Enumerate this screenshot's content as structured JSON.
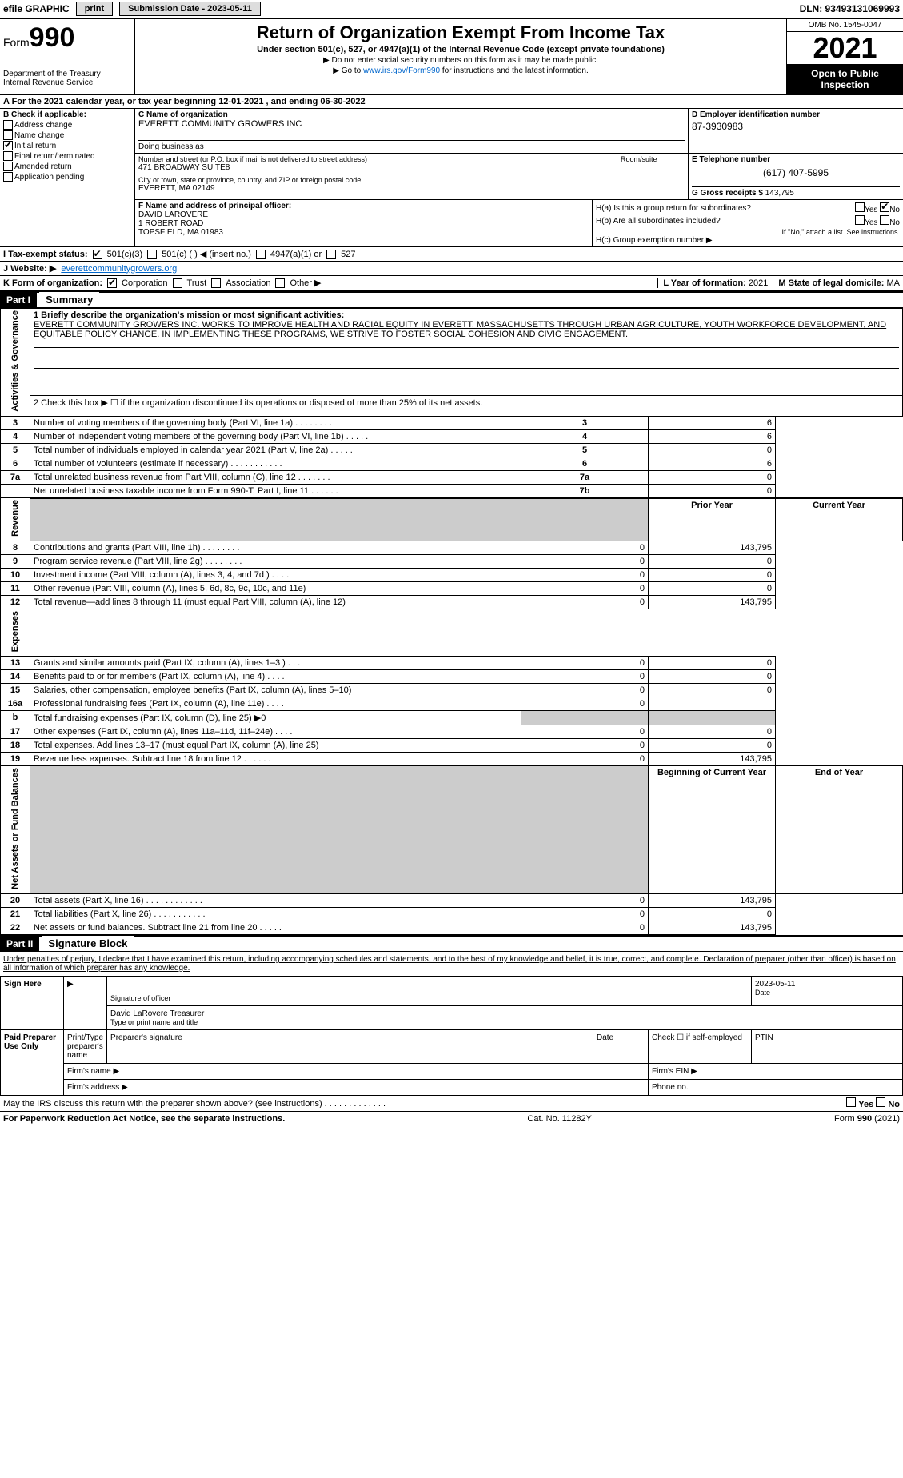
{
  "top": {
    "efile": "efile GRAPHIC",
    "print": "print",
    "sub_label": "Submission Date - 2023-05-11",
    "dln": "DLN: 93493131069993"
  },
  "header": {
    "form_label": "Form",
    "form_num": "990",
    "dept": "Department of the Treasury",
    "irs": "Internal Revenue Service",
    "title": "Return of Organization Exempt From Income Tax",
    "sub1": "Under section 501(c), 527, or 4947(a)(1) of the Internal Revenue Code (except private foundations)",
    "sub2": "▶ Do not enter social security numbers on this form as it may be made public.",
    "sub3_pre": "▶ Go to ",
    "sub3_link": "www.irs.gov/Form990",
    "sub3_post": " for instructions and the latest information.",
    "omb": "OMB No. 1545-0047",
    "year": "2021",
    "inspect": "Open to Public Inspection"
  },
  "period": "A For the 2021 calendar year, or tax year beginning 12-01-2021    , and ending 06-30-2022",
  "colB": {
    "label": "B Check if applicable:",
    "items": [
      "Address change",
      "Name change",
      "Initial return",
      "Final return/terminated",
      "Amended return",
      "Application pending"
    ],
    "checked_index": 2
  },
  "colC": {
    "name_label": "C Name of organization",
    "name": "EVERETT COMMUNITY GROWERS INC",
    "dba_label": "Doing business as",
    "addr_label": "Number and street (or P.O. box if mail is not delivered to street address)",
    "addr": "471 BROADWAY SUITE8",
    "room_label": "Room/suite",
    "city_label": "City or town, state or province, country, and ZIP or foreign postal code",
    "city": "EVERETT, MA  02149"
  },
  "colD": {
    "label": "D Employer identification number",
    "val": "87-3930983"
  },
  "colE": {
    "label": "E Telephone number",
    "val": "(617) 407-5995"
  },
  "colG": {
    "label": "G Gross receipts $",
    "val": "143,795"
  },
  "colF": {
    "label": "F  Name and address of principal officer:",
    "name": "DAVID LAROVERE",
    "addr1": "1 ROBERT ROAD",
    "addr2": "TOPSFIELD, MA  01983"
  },
  "colH": {
    "a_label": "H(a)  Is this a group return for subordinates?",
    "b_label": "H(b)  Are all subordinates included?",
    "b_note": "If \"No,\" attach a list. See instructions.",
    "c_label": "H(c)  Group exemption number ▶",
    "yes": "Yes",
    "no": "No"
  },
  "lineI": {
    "label": "I    Tax-exempt status:",
    "opts": [
      "501(c)(3)",
      "501(c) (   ) ◀ (insert no.)",
      "4947(a)(1) or",
      "527"
    ]
  },
  "lineJ": {
    "label": "J    Website: ▶",
    "val": "everettcommunitygrowers.org"
  },
  "lineK": {
    "label": "K Form of organization:",
    "opts": [
      "Corporation",
      "Trust",
      "Association",
      "Other ▶"
    ]
  },
  "lineL": {
    "label": "L Year of formation:",
    "val": "2021"
  },
  "lineM": {
    "label": "M State of legal domicile:",
    "val": "MA"
  },
  "part1": {
    "bar": "Part I",
    "title": "Summary"
  },
  "summary": {
    "line1_label": "1 Briefly describe the organization's mission or most significant activities:",
    "mission": "EVERETT COMMUNITY GROWERS INC. WORKS TO IMPROVE HEALTH AND RACIAL EQUITY IN EVERETT, MASSACHUSETTS THROUGH URBAN AGRICULTURE, YOUTH WORKFORCE DEVELOPMENT, AND EQUITABLE POLICY CHANGE. IN IMPLEMENTING THESE PROGRAMS, WE STRIVE TO FOSTER SOCIAL COHESION AND CIVIC ENGAGEMENT.",
    "line2": "2    Check this box ▶ ☐  if the organization discontinued its operations or disposed of more than 25% of its net assets."
  },
  "sides": {
    "gov": "Activities & Governance",
    "rev": "Revenue",
    "exp": "Expenses",
    "net": "Net Assets or Fund Balances"
  },
  "gov_rows": [
    {
      "n": "3",
      "t": "Number of voting members of the governing body (Part VI, line 1a)   .    .    .    .    .    .    .    .",
      "box": "3",
      "v": "6"
    },
    {
      "n": "4",
      "t": "Number of independent voting members of the governing body (Part VI, line 1b)   .    .    .    .    .",
      "box": "4",
      "v": "6"
    },
    {
      "n": "5",
      "t": "Total number of individuals employed in calendar year 2021 (Part V, line 2a)   .    .    .    .    .",
      "box": "5",
      "v": "0"
    },
    {
      "n": "6",
      "t": "Total number of volunteers (estimate if necessary)    .    .    .    .    .    .    .    .    .    .    .",
      "box": "6",
      "v": "6"
    },
    {
      "n": "7a",
      "t": "Total unrelated business revenue from Part VIII, column (C), line 12    .    .    .    .    .    .    .",
      "box": "7a",
      "v": "0"
    },
    {
      "n": "",
      "t": "Net unrelated business taxable income from Form 990-T, Part I, line 11    .    .    .    .    .    .",
      "box": "7b",
      "v": "0"
    }
  ],
  "col_headers": {
    "prior": "Prior Year",
    "current": "Current Year",
    "begin": "Beginning of Current Year",
    "end": "End of Year"
  },
  "rev_rows": [
    {
      "n": "8",
      "t": "Contributions and grants (Part VIII, line 1h)   .    .    .    .    .    .    .    .",
      "p": "0",
      "c": "143,795"
    },
    {
      "n": "9",
      "t": "Program service revenue (Part VIII, line 2g)   .    .    .    .    .    .    .    .",
      "p": "0",
      "c": "0"
    },
    {
      "n": "10",
      "t": "Investment income (Part VIII, column (A), lines 3, 4, and 7d )   .    .    .    .",
      "p": "0",
      "c": "0"
    },
    {
      "n": "11",
      "t": "Other revenue (Part VIII, column (A), lines 5, 6d, 8c, 9c, 10c, and 11e)",
      "p": "0",
      "c": "0"
    },
    {
      "n": "12",
      "t": "Total revenue—add lines 8 through 11 (must equal Part VIII, column (A), line 12)",
      "p": "0",
      "c": "143,795"
    }
  ],
  "exp_rows": [
    {
      "n": "13",
      "t": "Grants and similar amounts paid (Part IX, column (A), lines 1–3 )   .    .    .",
      "p": "0",
      "c": "0"
    },
    {
      "n": "14",
      "t": "Benefits paid to or for members (Part IX, column (A), line 4)   .    .    .    .",
      "p": "0",
      "c": "0"
    },
    {
      "n": "15",
      "t": "Salaries, other compensation, employee benefits (Part IX, column (A), lines 5–10)",
      "p": "0",
      "c": "0"
    },
    {
      "n": "16a",
      "t": "Professional fundraising fees (Part IX, column (A), line 11e)   .    .    .    .",
      "p": "0",
      "c": ""
    },
    {
      "n": "b",
      "t": "Total fundraising expenses (Part IX, column (D), line 25) ▶0",
      "p": "",
      "c": "",
      "shaded": true
    },
    {
      "n": "17",
      "t": "Other expenses (Part IX, column (A), lines 11a–11d, 11f–24e)   .    .    .    .",
      "p": "0",
      "c": "0"
    },
    {
      "n": "18",
      "t": "Total expenses. Add lines 13–17 (must equal Part IX, column (A), line 25)",
      "p": "0",
      "c": "0"
    },
    {
      "n": "19",
      "t": "Revenue less expenses. Subtract line 18 from line 12   .    .    .    .    .    .",
      "p": "0",
      "c": "143,795"
    }
  ],
  "net_rows": [
    {
      "n": "20",
      "t": "Total assets (Part X, line 16)   .    .    .    .    .    .    .    .    .    .    .    .",
      "p": "0",
      "c": "143,795"
    },
    {
      "n": "21",
      "t": "Total liabilities (Part X, line 26)   .    .    .    .    .    .    .    .    .    .    .",
      "p": "0",
      "c": "0"
    },
    {
      "n": "22",
      "t": "Net assets or fund balances. Subtract line 21 from line 20   .    .    .    .    .",
      "p": "0",
      "c": "143,795"
    }
  ],
  "part2": {
    "bar": "Part II",
    "title": "Signature Block"
  },
  "sig": {
    "decl": "Under penalties of perjury, I declare that I have examined this return, including accompanying schedules and statements, and to the best of my knowledge and belief, it is true, correct, and complete. Declaration of preparer (other than officer) is based on all information of which preparer has any knowledge.",
    "sign_here": "Sign Here",
    "sig_officer": "Signature of officer",
    "date": "2023-05-11",
    "date_label": "Date",
    "officer_name": "David LaRovere  Treasurer",
    "type_label": "Type or print name and title",
    "paid": "Paid Preparer Use Only",
    "prep_name": "Print/Type preparer's name",
    "prep_sig": "Preparer's signature",
    "prep_date": "Date",
    "self_emp": "Check ☐ if self-employed",
    "ptin": "PTIN",
    "firm_name": "Firm's name    ▶",
    "firm_ein": "Firm's EIN ▶",
    "firm_addr": "Firm's address ▶",
    "phone": "Phone no.",
    "discuss": "May the IRS discuss this return with the preparer shown above? (see instructions)    .    .    .    .    .    .    .    .    .    .    .    .    .",
    "yes": "Yes",
    "no": "No"
  },
  "footer": {
    "left": "For Paperwork Reduction Act Notice, see the separate instructions.",
    "mid": "Cat. No. 11282Y",
    "right": "Form 990 (2021)"
  }
}
